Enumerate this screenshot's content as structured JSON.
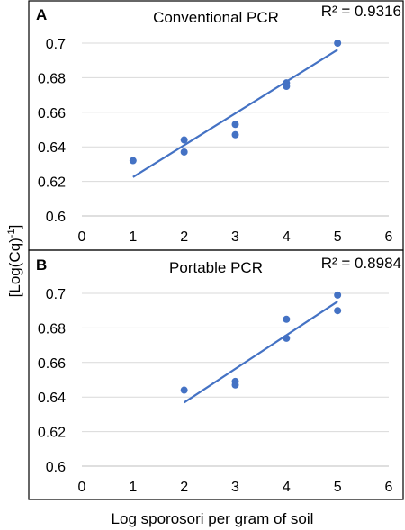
{
  "figure": {
    "xlabel": "Log sporosori per gram of soil",
    "ylabel": "[Log(Cq)",
    "ylabel_sup": "-1",
    "ylabel_end": "]"
  },
  "chart_data": [
    {
      "type": "scatter",
      "panel": "A",
      "title": "Conventional PCR",
      "annotation": "R² = 0.9316",
      "xlim": [
        0,
        6
      ],
      "ylim": [
        0.6,
        0.7
      ],
      "xticks": [
        0,
        1,
        2,
        3,
        4,
        5,
        6
      ],
      "yticks": [
        0.6,
        0.62,
        0.64,
        0.66,
        0.68,
        0.7
      ],
      "grid": true,
      "marker_color": "#4472C4",
      "points": [
        {
          "x": 1,
          "y": 0.632
        },
        {
          "x": 2,
          "y": 0.644
        },
        {
          "x": 2,
          "y": 0.637
        },
        {
          "x": 3,
          "y": 0.653
        },
        {
          "x": 3,
          "y": 0.647
        },
        {
          "x": 4,
          "y": 0.677
        },
        {
          "x": 4,
          "y": 0.675
        },
        {
          "x": 5,
          "y": 0.7
        }
      ],
      "trendline": {
        "x": [
          1,
          5
        ],
        "y": [
          0.6225,
          0.6962
        ]
      }
    },
    {
      "type": "scatter",
      "panel": "B",
      "title": "Portable PCR",
      "annotation": "R² = 0.8984",
      "xlim": [
        0,
        6
      ],
      "ylim": [
        0.6,
        0.7
      ],
      "xticks": [
        0,
        1,
        2,
        3,
        4,
        5,
        6
      ],
      "yticks": [
        0.6,
        0.62,
        0.64,
        0.66,
        0.68,
        0.7
      ],
      "grid": true,
      "marker_color": "#4472C4",
      "points": [
        {
          "x": 2,
          "y": 0.644
        },
        {
          "x": 3,
          "y": 0.649
        },
        {
          "x": 3,
          "y": 0.647
        },
        {
          "x": 4,
          "y": 0.685
        },
        {
          "x": 4,
          "y": 0.674
        },
        {
          "x": 5,
          "y": 0.699
        },
        {
          "x": 5,
          "y": 0.69
        }
      ],
      "trendline": {
        "x": [
          2,
          5
        ],
        "y": [
          0.6368,
          0.6953
        ]
      }
    }
  ]
}
